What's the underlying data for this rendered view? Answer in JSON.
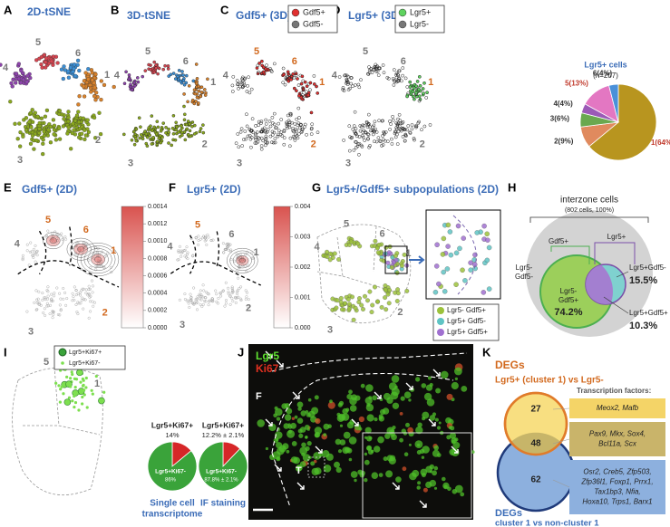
{
  "panels": {
    "A": {
      "letter": "A",
      "title": "2D-tSNE",
      "clusters": [
        "1",
        "2",
        "3",
        "4",
        "5",
        "6"
      ]
    },
    "B": {
      "letter": "B",
      "title": "3D-tSNE",
      "clusters": [
        "1",
        "2",
        "3",
        "4",
        "5",
        "6"
      ]
    },
    "C": {
      "letter": "C",
      "title": "Gdf5+ (3D)",
      "legend": [
        "Gdf5+",
        "Gdf5-"
      ],
      "clusters": [
        "1",
        "2",
        "3",
        "4",
        "5",
        "6"
      ]
    },
    "D": {
      "letter": "D",
      "title": "Lgr5+ (3D)",
      "legend": [
        "Lgr5+",
        "Lgr5-"
      ],
      "clusters": [
        "1",
        "2",
        "3",
        "4",
        "5",
        "6"
      ],
      "pie": {
        "title": "Lgr5+ cells",
        "subtitle": "(n=207)",
        "slices": [
          {
            "label": "1(64%)",
            "value": 64,
            "color": "#b8951f"
          },
          {
            "label": "2(9%)",
            "value": 9,
            "color": "#e08a5e"
          },
          {
            "label": "3(6%)",
            "value": 6,
            "color": "#6aa84f"
          },
          {
            "label": "4(4%)",
            "value": 4,
            "color": "#9b59b6"
          },
          {
            "label": "5(13%)",
            "value": 13,
            "color": "#e377c2"
          },
          {
            "label": "6(4%)",
            "value": 4,
            "color": "#4a90d9"
          }
        ]
      }
    },
    "E": {
      "letter": "E",
      "title": "Gdf5+ (2D)",
      "clusters": [
        "1",
        "2",
        "3",
        "4",
        "5",
        "6"
      ],
      "colorbar": [
        "0.0014",
        "0.0012",
        "0.0010",
        "0.0008",
        "0.0006",
        "0.0004",
        "0.0002",
        "0.0000"
      ]
    },
    "F": {
      "letter": "F",
      "title": "Lgr5+ (2D)",
      "clusters": [
        "1",
        "2",
        "3",
        "4",
        "5",
        "6"
      ],
      "colorbar": [
        "0.004",
        "0.003",
        "0.002",
        "0.001",
        "0.000"
      ]
    },
    "G": {
      "letter": "G",
      "title": "Lgr5+/Gdf5+ subpopulations (2D)",
      "clusters": [
        "1",
        "2",
        "3",
        "4",
        "5",
        "6"
      ],
      "legend": [
        "Lgr5- Gdf5+",
        "Lgr5+ Gdf5-",
        "Lgr5+ Gdf5+"
      ]
    },
    "H": {
      "letter": "H",
      "title": "interzone cells",
      "subtitle": "(802 cells, 100%)",
      "lgr5": "Lgr5+",
      "gdf5": "Gdf5+",
      "neither": [
        "Lgr5-",
        "Gdf5-"
      ],
      "gdf5_only": [
        "Lgr5-",
        "Gdf5+"
      ],
      "gdf5_only_pct": "74.2%",
      "lgr5_only": "Lgr5+Gdf5-",
      "lgr5_only_pct": "15.5%",
      "both": "Lgr5+Gdf5+",
      "both_pct": "10.3%"
    },
    "I": {
      "letter": "I",
      "clusters": [
        "1",
        "5"
      ],
      "legend": [
        "Lgr5+Ki67+",
        "Lgr5+Ki67-"
      ],
      "pies": [
        {
          "title": "Lgr5+Ki67+",
          "subtitle": "14%",
          "inner": "Lgr5+Ki67-",
          "inner_value": "86%",
          "caption": [
            "Single cell",
            "transcriptome"
          ],
          "slices": [
            {
              "value": 14,
              "color": "#d62728"
            },
            {
              "value": 86,
              "color": "#3aa33a"
            }
          ]
        },
        {
          "title": "Lgr5+Ki67+",
          "subtitle": "12.2% ± 2.1%",
          "inner": "Lgr5+Ki67-",
          "inner_value": "87.8% ± 2.1%",
          "caption": [
            "IF staining"
          ],
          "slices": [
            {
              "value": 12.2,
              "color": "#d62728"
            },
            {
              "value": 87.8,
              "color": "#3aa33a"
            }
          ]
        }
      ]
    },
    "J": {
      "letter": "J",
      "lgr5": "Lgr5",
      "ki67": "Ki67",
      "f": "F",
      "t": "T"
    },
    "K": {
      "letter": "K",
      "top_title": "DEGs",
      "top_sub": "Lgr5+ (cluster 1) vs Lgr5-",
      "bottom_title": "DEGs",
      "bottom_sub": "cluster 1 vs non-cluster 1",
      "tf_title": "Transcription factors:",
      "counts": [
        27,
        48,
        62
      ],
      "genes": [
        [
          "Meox2, Mafb"
        ],
        [
          "Pax9, Mkx, Sox4,",
          "Bcl11a, Scx"
        ],
        [
          "Osr2, Creb5, Zfp503,",
          "Zfp36l1, Foxp1, Prrx1,",
          "Tax1bp3, Nfia,",
          "Hoxa10, Trps1, Barx1"
        ]
      ]
    }
  }
}
